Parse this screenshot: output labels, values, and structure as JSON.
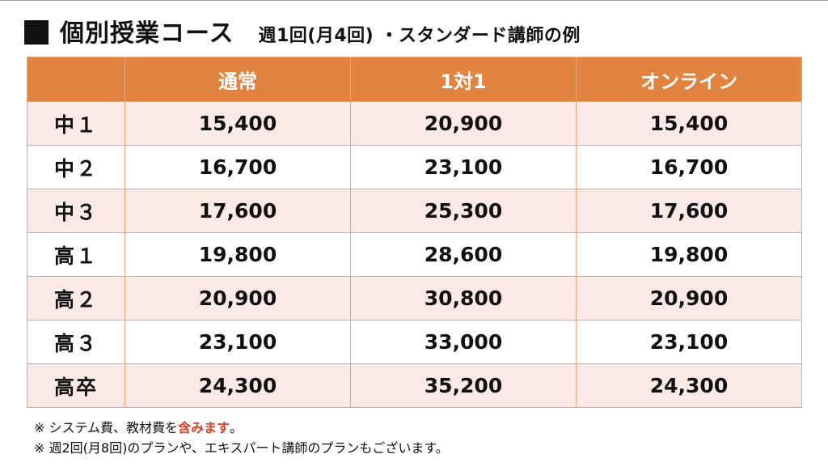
{
  "header": {
    "title": "個別授業コース",
    "subtitle": "週1回(月4回) ・スタンダード講師の例"
  },
  "table": {
    "columns": [
      "",
      "通常",
      "1対1",
      "オンライン"
    ],
    "rows": [
      {
        "label": "中１",
        "values": [
          "15,400",
          "20,900",
          "15,400"
        ]
      },
      {
        "label": "中２",
        "values": [
          "16,700",
          "23,100",
          "16,700"
        ]
      },
      {
        "label": "中３",
        "values": [
          "17,600",
          "25,300",
          "17,600"
        ]
      },
      {
        "label": "高１",
        "values": [
          "19,800",
          "28,600",
          "19,800"
        ]
      },
      {
        "label": "高２",
        "values": [
          "20,900",
          "30,800",
          "20,900"
        ]
      },
      {
        "label": "高３",
        "values": [
          "23,100",
          "33,000",
          "23,100"
        ]
      },
      {
        "label": "高卒",
        "values": [
          "24,300",
          "35,200",
          "24,300"
        ]
      }
    ]
  },
  "notes": {
    "line1_prefix": "※ システム費、教材費を",
    "line1_highlight": "含みます",
    "line1_suffix": "。",
    "line2": "※ 週2回(月8回)のプランや、エキスパート講師のプランもございます。"
  },
  "colors": {
    "header_bg": "#e0843f",
    "row_alt_bg": "#fbe9e6",
    "border": "#e8a57a",
    "highlight": "#e03a24"
  }
}
